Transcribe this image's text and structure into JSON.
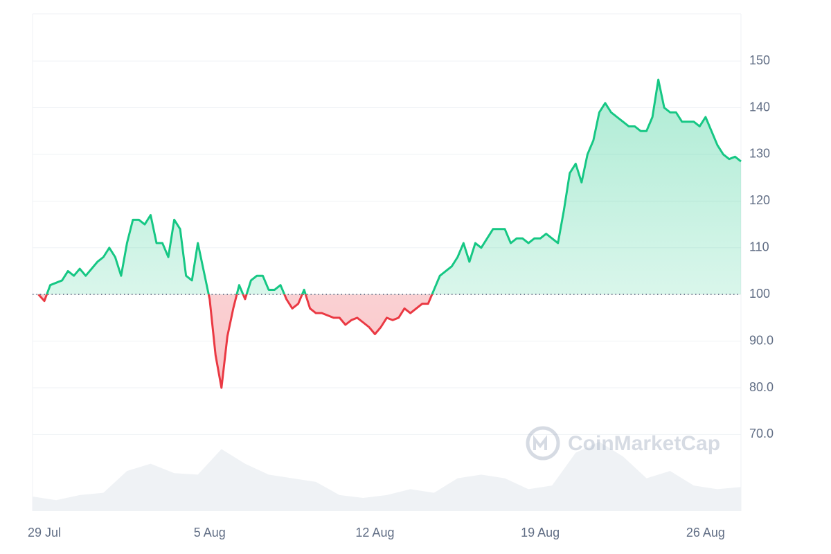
{
  "chart_data": {
    "type": "line",
    "watermark": "CoinMarketCap",
    "baseline": 100,
    "up_color": "#16c784",
    "down_color": "#ea3943",
    "grid": true,
    "xlim": [
      -1,
      119
    ],
    "xticks": [
      {
        "value": 1,
        "label": "29 Jul"
      },
      {
        "value": 29,
        "label": "5 Aug"
      },
      {
        "value": 57,
        "label": "12 Aug"
      },
      {
        "value": 85,
        "label": "19 Aug"
      },
      {
        "value": 113,
        "label": "26 Aug"
      }
    ],
    "ylim": [
      53.6,
      160.1
    ],
    "yticks": [
      {
        "value": 70,
        "label": "70.0"
      },
      {
        "value": 80,
        "label": "80.0"
      },
      {
        "value": 90,
        "label": "90.0"
      },
      100,
      110,
      120,
      130,
      140,
      150
    ],
    "values": [
      100,
      98.6,
      102,
      102.5,
      103,
      105,
      104,
      105.5,
      104,
      105.5,
      107,
      108,
      110,
      108,
      104,
      111,
      116,
      116,
      115,
      117,
      111,
      111,
      108,
      116,
      114,
      104,
      103,
      111,
      105,
      99,
      87,
      80,
      91,
      97,
      102,
      99,
      103,
      104,
      104,
      101,
      101,
      102,
      99,
      97,
      98,
      101,
      97,
      96,
      96,
      95.5,
      95,
      95,
      93.5,
      94.5,
      95,
      94,
      93,
      91.5,
      93,
      95,
      94.5,
      95,
      97,
      96,
      97,
      98,
      98,
      101,
      104,
      105,
      106,
      108,
      111,
      107,
      111,
      110,
      112,
      114,
      114,
      114,
      111,
      112,
      112,
      111,
      112,
      112,
      113,
      112,
      111,
      118,
      126,
      128,
      124,
      130,
      133,
      139,
      141,
      139,
      138,
      137,
      136,
      136,
      135,
      135,
      138,
      146,
      140,
      139,
      139,
      137,
      137,
      137,
      136,
      138,
      135,
      132,
      130,
      129,
      129.5,
      128.5
    ],
    "volume": {
      "color": "#eff2f5",
      "values": [
        20,
        15,
        22,
        25,
        55,
        65,
        52,
        50,
        85,
        65,
        50,
        45,
        40,
        22,
        18,
        22,
        30,
        25,
        45,
        50,
        45,
        30,
        35,
        80,
        95,
        75,
        45,
        55,
        35,
        30,
        33
      ]
    }
  }
}
